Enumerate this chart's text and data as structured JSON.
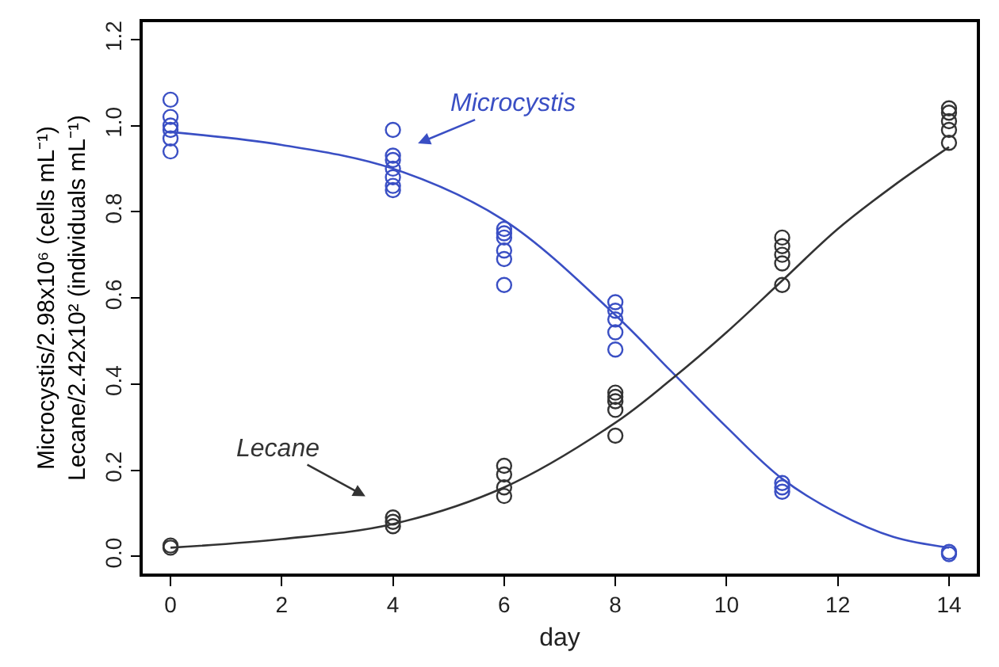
{
  "chart_data": {
    "type": "scatter",
    "xlabel": "day",
    "ylabel": "Microcystis/2.98x10⁶ (cells mL⁻¹)\nLecane/2.42x10² (individuals mL⁻¹)",
    "xlim": [
      -0.5,
      14.5
    ],
    "xticks": [
      0,
      2,
      4,
      6,
      8,
      10,
      12,
      14
    ],
    "ylim": [
      -0.04,
      1.24
    ],
    "yticks": [
      {
        "value": 0,
        "label": "0.0"
      },
      0.2,
      0.4,
      0.6,
      0.8,
      {
        "value": 1,
        "label": "1.0"
      },
      1.2
    ],
    "marker": "circle",
    "series": [
      {
        "color": "#3a4fc4",
        "x": [
          0,
          0,
          0,
          0,
          0,
          0,
          4,
          4,
          4,
          4,
          4,
          4,
          4,
          6,
          6,
          6,
          6,
          6,
          6,
          8,
          8,
          8,
          8,
          8,
          11,
          11,
          11,
          14,
          14
        ],
        "values": [
          0.94,
          0.97,
          0.99,
          1.0,
          1.02,
          1.06,
          0.85,
          0.86,
          0.88,
          0.9,
          0.92,
          0.93,
          0.99,
          0.63,
          0.69,
          0.71,
          0.74,
          0.75,
          0.76,
          0.48,
          0.52,
          0.55,
          0.57,
          0.59,
          0.15,
          0.16,
          0.17,
          0.01,
          0.005
        ]
      },
      {
        "color": "#333333",
        "x": [
          0,
          0,
          4,
          4,
          4,
          6,
          6,
          6,
          6,
          8,
          8,
          8,
          8,
          8,
          11,
          11,
          11,
          11,
          11,
          14,
          14,
          14,
          14,
          14
        ],
        "values": [
          0.02,
          0.025,
          0.07,
          0.08,
          0.09,
          0.14,
          0.16,
          0.19,
          0.21,
          0.28,
          0.34,
          0.36,
          0.37,
          0.38,
          0.63,
          0.68,
          0.7,
          0.72,
          0.74,
          0.96,
          0.99,
          1.01,
          1.03,
          1.04
        ]
      },
      {
        "type": "line",
        "marker": "none",
        "color": "#3a4fc4",
        "x": [
          0,
          2,
          4,
          6,
          8,
          9,
          10,
          11,
          12,
          13,
          14
        ],
        "values": [
          0.985,
          0.955,
          0.9,
          0.78,
          0.56,
          0.43,
          0.3,
          0.18,
          0.1,
          0.045,
          0.02
        ]
      },
      {
        "type": "line",
        "marker": "none",
        "color": "#333333",
        "x": [
          0,
          2,
          4,
          6,
          8,
          9,
          10,
          11,
          12,
          13,
          14
        ],
        "values": [
          0.02,
          0.04,
          0.075,
          0.16,
          0.31,
          0.41,
          0.52,
          0.64,
          0.76,
          0.86,
          0.95
        ]
      }
    ],
    "annotations": [
      "Microcystis",
      "Lecane"
    ]
  }
}
